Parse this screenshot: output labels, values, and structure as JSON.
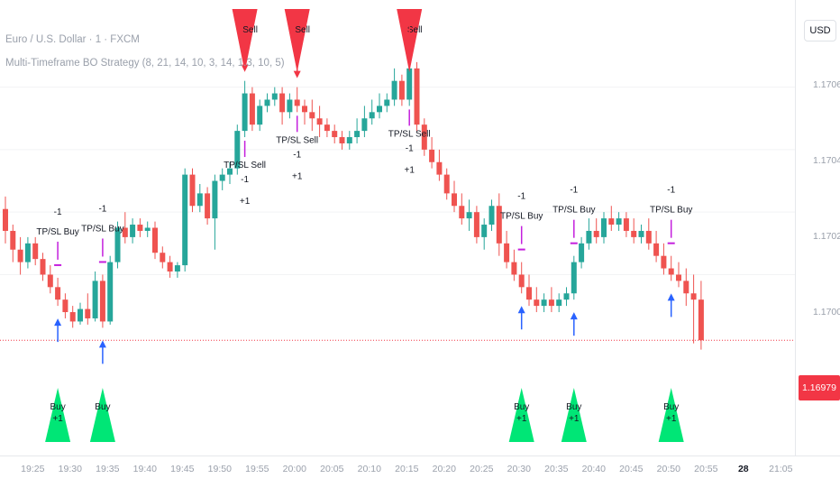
{
  "header": {
    "symbol_title": "Euro / U.S. Dollar · 1 · FXCM",
    "strategy_title": "Multi-Timeframe BO Strategy (8, 21, 14, 10, 3, 14, 1.3, 10, 5)"
  },
  "price_axis": {
    "currency": "USD",
    "ticks": [
      "1.17060",
      "1.17040",
      "1.17020",
      "1.17000"
    ],
    "last_price": "1.16979"
  },
  "time_axis": {
    "ticks": [
      "19:25",
      "19:30",
      "19:35",
      "19:40",
      "19:45",
      "19:50",
      "19:55",
      "20:00",
      "20:05",
      "20:10",
      "20:15",
      "20:20",
      "20:25",
      "20:30",
      "20:35",
      "20:40",
      "20:45",
      "20:50",
      "20:55",
      "28",
      "21:05"
    ]
  },
  "colors": {
    "up": "#26a69a",
    "down": "#ef5350",
    "buy_arrow": "#2962ff",
    "sell_arrow": "#f23645",
    "tp_sl_marker": "#c41fdd",
    "buy_triangle": "#00e676",
    "sell_triangle": "#f23645",
    "last_price": "#f23645"
  },
  "chart_data": {
    "type": "candlestick",
    "symbol": "Euro / U.S. Dollar · 1 · FXCM",
    "ylim": [
      1.16945,
      1.17085
    ],
    "last_price": 1.16979,
    "candles": [
      {
        "t": "19:24",
        "o": 1.17021,
        "h": 1.17025,
        "c": 1.17014,
        "l": 1.1701
      },
      {
        "t": "19:25",
        "o": 1.17014,
        "h": 1.17016,
        "c": 1.17008,
        "l": 1.17004
      },
      {
        "t": "19:26",
        "o": 1.17008,
        "h": 1.17012,
        "c": 1.17004,
        "l": 1.17
      },
      {
        "t": "19:27",
        "o": 1.17004,
        "h": 1.17012,
        "c": 1.1701,
        "l": 1.17002
      },
      {
        "t": "19:28",
        "o": 1.1701,
        "h": 1.17012,
        "c": 1.17005,
        "l": 1.17003
      },
      {
        "t": "19:29",
        "o": 1.17005,
        "h": 1.17007,
        "c": 1.17,
        "l": 1.16998
      },
      {
        "t": "19:30",
        "o": 1.17,
        "h": 1.17003,
        "c": 1.16996,
        "l": 1.16994
      },
      {
        "t": "19:31",
        "o": 1.16996,
        "h": 1.16999,
        "c": 1.16992,
        "l": 1.1699
      },
      {
        "t": "19:32",
        "o": 1.16992,
        "h": 1.16994,
        "c": 1.16988,
        "l": 1.16986
      },
      {
        "t": "19:33",
        "o": 1.16988,
        "h": 1.1699,
        "c": 1.16985,
        "l": 1.16983
      },
      {
        "t": "19:34",
        "o": 1.16985,
        "h": 1.16991,
        "c": 1.16989,
        "l": 1.16984
      },
      {
        "t": "19:35",
        "o": 1.16989,
        "h": 1.16994,
        "c": 1.16986,
        "l": 1.16984
      },
      {
        "t": "19:36",
        "o": 1.16986,
        "h": 1.17001,
        "c": 1.16998,
        "l": 1.16985
      },
      {
        "t": "19:37",
        "o": 1.16998,
        "h": 1.17,
        "c": 1.16985,
        "l": 1.16983
      },
      {
        "t": "19:38",
        "o": 1.16985,
        "h": 1.17006,
        "c": 1.17004,
        "l": 1.16984
      },
      {
        "t": "19:39",
        "o": 1.17004,
        "h": 1.17017,
        "c": 1.17015,
        "l": 1.17002
      },
      {
        "t": "19:40",
        "o": 1.17015,
        "h": 1.1702,
        "c": 1.17012,
        "l": 1.1701
      },
      {
        "t": "19:41",
        "o": 1.17012,
        "h": 1.17018,
        "c": 1.17016,
        "l": 1.1701
      },
      {
        "t": "19:42",
        "o": 1.17016,
        "h": 1.17018,
        "c": 1.17014,
        "l": 1.17012
      },
      {
        "t": "19:43",
        "o": 1.17014,
        "h": 1.17017,
        "c": 1.17015,
        "l": 1.17012
      },
      {
        "t": "19:44",
        "o": 1.17015,
        "h": 1.17017,
        "c": 1.17007,
        "l": 1.17005
      },
      {
        "t": "19:45",
        "o": 1.17007,
        "h": 1.17009,
        "c": 1.17004,
        "l": 1.17002
      },
      {
        "t": "19:46",
        "o": 1.17004,
        "h": 1.17006,
        "c": 1.17001,
        "l": 1.16999
      },
      {
        "t": "19:47",
        "o": 1.17001,
        "h": 1.17004,
        "c": 1.17003,
        "l": 1.16999
      },
      {
        "t": "19:48",
        "o": 1.17003,
        "h": 1.17034,
        "c": 1.17032,
        "l": 1.17001
      },
      {
        "t": "19:49",
        "o": 1.17032,
        "h": 1.17034,
        "c": 1.17022,
        "l": 1.1702
      },
      {
        "t": "19:50",
        "o": 1.17022,
        "h": 1.17029,
        "c": 1.17026,
        "l": 1.1702
      },
      {
        "t": "19:51",
        "o": 1.17026,
        "h": 1.17028,
        "c": 1.17018,
        "l": 1.17016
      },
      {
        "t": "19:52",
        "o": 1.17018,
        "h": 1.17032,
        "c": 1.1703,
        "l": 1.17008
      },
      {
        "t": "19:53",
        "o": 1.1703,
        "h": 1.17034,
        "c": 1.17032,
        "l": 1.17027
      },
      {
        "t": "19:54",
        "o": 1.17032,
        "h": 1.17036,
        "c": 1.17034,
        "l": 1.17029
      },
      {
        "t": "19:55",
        "o": 1.17034,
        "h": 1.17048,
        "c": 1.17046,
        "l": 1.17032
      },
      {
        "t": "19:56",
        "o": 1.17046,
        "h": 1.17062,
        "c": 1.17058,
        "l": 1.17044
      },
      {
        "t": "19:57",
        "o": 1.17058,
        "h": 1.1706,
        "c": 1.17048,
        "l": 1.17046
      },
      {
        "t": "19:58",
        "o": 1.17048,
        "h": 1.17056,
        "c": 1.17054,
        "l": 1.17046
      },
      {
        "t": "19:59",
        "o": 1.17054,
        "h": 1.17058,
        "c": 1.17056,
        "l": 1.17052
      },
      {
        "t": "20:00",
        "o": 1.17056,
        "h": 1.1706,
        "c": 1.17058,
        "l": 1.17054
      },
      {
        "t": "20:01",
        "o": 1.17058,
        "h": 1.1706,
        "c": 1.17052,
        "l": 1.17048
      },
      {
        "t": "20:02",
        "o": 1.17052,
        "h": 1.17058,
        "c": 1.17056,
        "l": 1.1705
      },
      {
        "t": "20:03",
        "o": 1.17056,
        "h": 1.1706,
        "c": 1.17054,
        "l": 1.17052
      },
      {
        "t": "20:04",
        "o": 1.17054,
        "h": 1.17056,
        "c": 1.17052,
        "l": 1.17048
      },
      {
        "t": "20:05",
        "o": 1.17052,
        "h": 1.17056,
        "c": 1.1705,
        "l": 1.17046
      },
      {
        "t": "20:06",
        "o": 1.1705,
        "h": 1.17054,
        "c": 1.17048,
        "l": 1.17044
      },
      {
        "t": "20:07",
        "o": 1.17048,
        "h": 1.1705,
        "c": 1.17046,
        "l": 1.17044
      },
      {
        "t": "20:08",
        "o": 1.17046,
        "h": 1.17048,
        "c": 1.17044,
        "l": 1.17042
      },
      {
        "t": "20:09",
        "o": 1.17044,
        "h": 1.17046,
        "c": 1.17042,
        "l": 1.1704
      },
      {
        "t": "20:10",
        "o": 1.17042,
        "h": 1.17046,
        "c": 1.17044,
        "l": 1.1704
      },
      {
        "t": "20:11",
        "o": 1.17044,
        "h": 1.1705,
        "c": 1.17046,
        "l": 1.17042
      },
      {
        "t": "20:12",
        "o": 1.17046,
        "h": 1.17054,
        "c": 1.1705,
        "l": 1.17044
      },
      {
        "t": "20:13",
        "o": 1.1705,
        "h": 1.17056,
        "c": 1.17052,
        "l": 1.17048
      },
      {
        "t": "20:14",
        "o": 1.17052,
        "h": 1.17058,
        "c": 1.17054,
        "l": 1.1705
      },
      {
        "t": "20:15",
        "o": 1.17054,
        "h": 1.17058,
        "c": 1.17056,
        "l": 1.17052
      },
      {
        "t": "20:16",
        "o": 1.17056,
        "h": 1.17066,
        "c": 1.17062,
        "l": 1.17054
      },
      {
        "t": "20:17",
        "o": 1.17062,
        "h": 1.17064,
        "c": 1.17056,
        "l": 1.17054
      },
      {
        "t": "20:18",
        "o": 1.17056,
        "h": 1.17072,
        "c": 1.17066,
        "l": 1.17054
      },
      {
        "t": "20:19",
        "o": 1.17066,
        "h": 1.17068,
        "c": 1.17048,
        "l": 1.17046
      },
      {
        "t": "20:20",
        "o": 1.17048,
        "h": 1.1705,
        "c": 1.1704,
        "l": 1.17038
      },
      {
        "t": "20:21",
        "o": 1.1704,
        "h": 1.17044,
        "c": 1.17036,
        "l": 1.17034
      },
      {
        "t": "20:22",
        "o": 1.17036,
        "h": 1.1704,
        "c": 1.17032,
        "l": 1.1703
      },
      {
        "t": "20:23",
        "o": 1.17032,
        "h": 1.17034,
        "c": 1.17026,
        "l": 1.17024
      },
      {
        "t": "20:24",
        "o": 1.17026,
        "h": 1.1703,
        "c": 1.17022,
        "l": 1.1702
      },
      {
        "t": "20:25",
        "o": 1.17022,
        "h": 1.17026,
        "c": 1.17018,
        "l": 1.17016
      },
      {
        "t": "20:26",
        "o": 1.17018,
        "h": 1.17024,
        "c": 1.1702,
        "l": 1.17014
      },
      {
        "t": "20:27",
        "o": 1.1702,
        "h": 1.17022,
        "c": 1.17012,
        "l": 1.1701
      },
      {
        "t": "20:28",
        "o": 1.17012,
        "h": 1.17018,
        "c": 1.17016,
        "l": 1.17008
      },
      {
        "t": "20:29",
        "o": 1.17016,
        "h": 1.17024,
        "c": 1.17022,
        "l": 1.17014
      },
      {
        "t": "20:30",
        "o": 1.17022,
        "h": 1.17026,
        "c": 1.1701,
        "l": 1.17006
      },
      {
        "t": "20:31",
        "o": 1.1701,
        "h": 1.17014,
        "c": 1.17004,
        "l": 1.17002
      },
      {
        "t": "20:32",
        "o": 1.17004,
        "h": 1.17008,
        "c": 1.17,
        "l": 1.16998
      },
      {
        "t": "20:33",
        "o": 1.17,
        "h": 1.17004,
        "c": 1.16996,
        "l": 1.16994
      },
      {
        "t": "20:34",
        "o": 1.16996,
        "h": 1.17,
        "c": 1.16992,
        "l": 1.1699
      },
      {
        "t": "20:35",
        "o": 1.16992,
        "h": 1.16996,
        "c": 1.1699,
        "l": 1.16988
      },
      {
        "t": "20:36",
        "o": 1.1699,
        "h": 1.16994,
        "c": 1.16992,
        "l": 1.16988
      },
      {
        "t": "20:37",
        "o": 1.16992,
        "h": 1.16996,
        "c": 1.1699,
        "l": 1.16988
      },
      {
        "t": "20:38",
        "o": 1.1699,
        "h": 1.16994,
        "c": 1.16992,
        "l": 1.16988
      },
      {
        "t": "20:39",
        "o": 1.16992,
        "h": 1.16996,
        "c": 1.16994,
        "l": 1.1699
      },
      {
        "t": "20:40",
        "o": 1.16994,
        "h": 1.17006,
        "c": 1.17004,
        "l": 1.16992
      },
      {
        "t": "20:41",
        "o": 1.17004,
        "h": 1.17012,
        "c": 1.1701,
        "l": 1.17002
      },
      {
        "t": "20:42",
        "o": 1.1701,
        "h": 1.17018,
        "c": 1.17014,
        "l": 1.17008
      },
      {
        "t": "20:43",
        "o": 1.17014,
        "h": 1.17018,
        "c": 1.17012,
        "l": 1.1701
      },
      {
        "t": "20:44",
        "o": 1.17012,
        "h": 1.1702,
        "c": 1.17018,
        "l": 1.1701
      },
      {
        "t": "20:45",
        "o": 1.17018,
        "h": 1.17022,
        "c": 1.17016,
        "l": 1.17014
      },
      {
        "t": "20:46",
        "o": 1.17016,
        "h": 1.1702,
        "c": 1.17018,
        "l": 1.17014
      },
      {
        "t": "20:47",
        "o": 1.17018,
        "h": 1.1702,
        "c": 1.17014,
        "l": 1.17012
      },
      {
        "t": "20:48",
        "o": 1.17014,
        "h": 1.17018,
        "c": 1.17012,
        "l": 1.1701
      },
      {
        "t": "20:49",
        "o": 1.17012,
        "h": 1.17016,
        "c": 1.17014,
        "l": 1.1701
      },
      {
        "t": "20:50",
        "o": 1.17014,
        "h": 1.17018,
        "c": 1.1701,
        "l": 1.17008
      },
      {
        "t": "20:51",
        "o": 1.1701,
        "h": 1.17014,
        "c": 1.17006,
        "l": 1.17004
      },
      {
        "t": "20:52",
        "o": 1.17006,
        "h": 1.1701,
        "c": 1.17002,
        "l": 1.17
      },
      {
        "t": "20:53",
        "o": 1.17002,
        "h": 1.17006,
        "c": 1.17,
        "l": 1.16998
      },
      {
        "t": "20:54",
        "o": 1.17,
        "h": 1.17004,
        "c": 1.16998,
        "l": 1.16996
      },
      {
        "t": "20:55",
        "o": 1.16998,
        "h": 1.17002,
        "c": 1.16994,
        "l": 1.1699
      },
      {
        "t": "20:56",
        "o": 1.16994,
        "h": 1.17,
        "c": 1.16992,
        "l": 1.16978
      },
      {
        "t": "20:57",
        "o": 1.16992,
        "h": 1.16998,
        "c": 1.16979,
        "l": 1.16976
      }
    ],
    "signals": [
      {
        "t": "19:31",
        "type": "buy",
        "labels": [
          "Buy",
          "+1"
        ],
        "tp_sl": "TP/SL Buy"
      },
      {
        "t": "19:37",
        "type": "buy",
        "labels": [
          "Buy"
        ],
        "tp_sl": "TP/SL Buy"
      },
      {
        "t": "19:56",
        "type": "sell",
        "labels": [
          "Sell"
        ],
        "tp_sl": "TP/SL Sell"
      },
      {
        "t": "20:03",
        "type": "sell",
        "labels": [
          "Sell"
        ],
        "tp_sl": "TP/SL Sell"
      },
      {
        "t": "20:18",
        "type": "sell",
        "labels": [
          "Sell"
        ],
        "tp_sl": "TP/SL Sell"
      },
      {
        "t": "20:33",
        "type": "buy",
        "labels": [
          "Buy",
          "+1"
        ],
        "tp_sl": "TP/SL Buy"
      },
      {
        "t": "20:40",
        "type": "buy",
        "labels": [
          "Buy",
          "+1"
        ],
        "tp_sl": "TP/SL Buy"
      },
      {
        "t": "20:53",
        "type": "buy",
        "labels": [
          "Buy",
          "+1"
        ],
        "tp_sl": "TP/SL Buy"
      }
    ],
    "annotations": [
      "-1",
      "+1",
      "TP/SL Buy",
      "TP/SL Sell",
      "Buy",
      "Sell"
    ]
  }
}
